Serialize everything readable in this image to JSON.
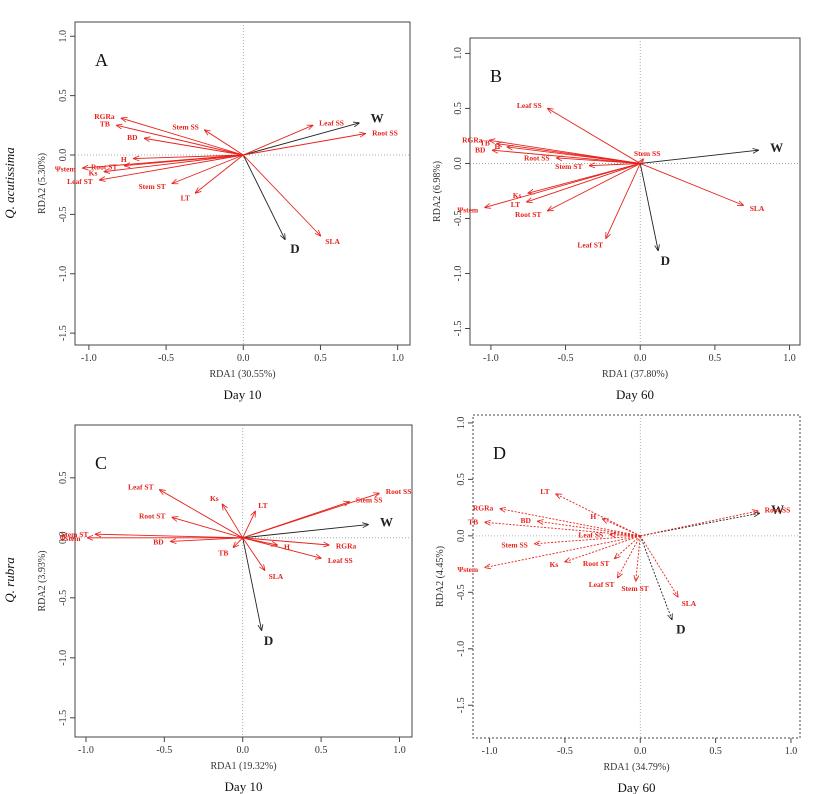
{
  "row_labels": [
    "Q. acutissima",
    "Q. rubra"
  ],
  "chart_data": [
    {
      "type": "biplot",
      "panel": "A",
      "xlabel": "RDA1 (30.55%)",
      "ylabel": "RDA2 (5.30%)",
      "caption": "Day 10",
      "xlim": [
        -1.09,
        1.08
      ],
      "ylim": [
        -1.6,
        1.12
      ],
      "xticks": [
        {
          "value": -1,
          "label": "-1.0"
        },
        -0.5,
        {
          "value": 0,
          "label": "0.0"
        },
        0.5,
        {
          "value": 1,
          "label": "1.0"
        }
      ],
      "yticks": [
        {
          "value": -1.5,
          "label": "-1.5"
        },
        {
          "value": -1,
          "label": "-1.0"
        },
        -0.5,
        {
          "value": 0,
          "label": "0.0"
        },
        0.5,
        {
          "value": 1,
          "label": "1.0"
        }
      ],
      "series": [
        {
          "name": "W",
          "color": "#222222",
          "x": 0.75,
          "y": 0.27
        },
        {
          "name": "D",
          "color": "#222222",
          "x": 0.27,
          "y": -0.71
        },
        {
          "name": "Leaf SS",
          "color": "#e8221b",
          "x": 0.45,
          "y": 0.25
        },
        {
          "name": "Root SS",
          "color": "#e8221b",
          "x": 0.79,
          "y": 0.18
        },
        {
          "name": "SLA",
          "color": "#e8221b",
          "x": 0.5,
          "y": -0.68
        },
        {
          "name": "Stem SS",
          "color": "#e8221b",
          "x": -0.25,
          "y": 0.21
        },
        {
          "name": "RGRa",
          "color": "#e8221b",
          "x": -0.79,
          "y": 0.31
        },
        {
          "name": "TB",
          "color": "#e8221b",
          "x": -0.82,
          "y": 0.25
        },
        {
          "name": "BD",
          "color": "#e8221b",
          "x": -0.64,
          "y": 0.14
        },
        {
          "name": "H",
          "color": "#e8221b",
          "x": -0.71,
          "y": -0.03
        },
        {
          "name": "Ψstem",
          "color": "#e8221b",
          "x": -1.04,
          "y": -0.11
        },
        {
          "name": "Ks",
          "color": "#e8221b",
          "x": -0.9,
          "y": -0.14
        },
        {
          "name": "Root ST",
          "color": "#e8221b",
          "x": -0.77,
          "y": -0.09
        },
        {
          "name": "Leaf ST",
          "color": "#e8221b",
          "x": -0.93,
          "y": -0.21
        },
        {
          "name": "Stem ST",
          "color": "#e8221b",
          "x": -0.46,
          "y": -0.24
        },
        {
          "name": "LT",
          "color": "#e8221b",
          "x": -0.31,
          "y": -0.32
        }
      ]
    },
    {
      "type": "biplot",
      "panel": "B",
      "xlabel": "RDA1 (37.80%)",
      "ylabel": "RDA2 (6.98%)",
      "caption": "Day 60",
      "xlim": [
        -1.14,
        1.07
      ],
      "ylim": [
        -1.65,
        1.14
      ],
      "xticks": [
        {
          "value": -1,
          "label": "-1.0"
        },
        -0.5,
        {
          "value": 0,
          "label": "0.0"
        },
        0.5,
        {
          "value": 1,
          "label": "1.0"
        }
      ],
      "yticks": [
        {
          "value": -1.5,
          "label": "-1.5"
        },
        {
          "value": -1,
          "label": "-1.0"
        },
        -0.5,
        {
          "value": 0,
          "label": "0.0"
        },
        0.5,
        {
          "value": 1,
          "label": "1.0"
        }
      ],
      "series": [
        {
          "name": "W",
          "color": "#222222",
          "x": 0.79,
          "y": 0.12
        },
        {
          "name": "D",
          "color": "#222222",
          "x": 0.12,
          "y": -0.79
        },
        {
          "name": "Leaf SS",
          "color": "#e8221b",
          "x": -0.62,
          "y": 0.5
        },
        {
          "name": "Stem SS",
          "color": "#e8221b",
          "x": 0.02,
          "y": 0.04
        },
        {
          "name": "SLA",
          "color": "#e8221b",
          "x": 0.69,
          "y": -0.38
        },
        {
          "name": "RGRa",
          "color": "#e8221b",
          "x": -1.01,
          "y": 0.21
        },
        {
          "name": "TB",
          "color": "#e8221b",
          "x": -0.96,
          "y": 0.18
        },
        {
          "name": "H",
          "color": "#e8221b",
          "x": -0.89,
          "y": 0.15
        },
        {
          "name": "BD",
          "color": "#e8221b",
          "x": -0.99,
          "y": 0.12
        },
        {
          "name": "Root SS",
          "color": "#e8221b",
          "x": -0.56,
          "y": 0.05
        },
        {
          "name": "Stem ST",
          "color": "#e8221b",
          "x": -0.34,
          "y": -0.02
        },
        {
          "name": "Ks",
          "color": "#e8221b",
          "x": -0.75,
          "y": -0.27
        },
        {
          "name": "Ψstem",
          "color": "#e8221b",
          "x": -1.04,
          "y": -0.4
        },
        {
          "name": "LT",
          "color": "#e8221b",
          "x": -0.76,
          "y": -0.35
        },
        {
          "name": "Root ST",
          "color": "#e8221b",
          "x": -0.62,
          "y": -0.43
        },
        {
          "name": "Leaf ST",
          "color": "#e8221b",
          "x": -0.23,
          "y": -0.68
        }
      ]
    },
    {
      "type": "biplot",
      "panel": "C",
      "xlabel": "RDA1 (19.32%)",
      "ylabel": "RDA2 (3.93%)",
      "caption": "Day 10",
      "xlim": [
        -1.07,
        1.08
      ],
      "ylim": [
        -1.66,
        0.94
      ],
      "xticks": [
        {
          "value": -1,
          "label": "-1.0"
        },
        -0.5,
        {
          "value": 0,
          "label": "0.0"
        },
        0.5,
        {
          "value": 1,
          "label": "1.0"
        }
      ],
      "yticks": [
        {
          "value": -1.5,
          "label": "-1.5"
        },
        {
          "value": -1,
          "label": "-1.0"
        },
        -0.5,
        {
          "value": 0,
          "label": "0.0"
        },
        0.5
      ],
      "series": [
        {
          "name": "W",
          "color": "#222222",
          "x": 0.8,
          "y": 0.11
        },
        {
          "name": "D",
          "color": "#222222",
          "x": 0.12,
          "y": -0.77
        },
        {
          "name": "Stem SS",
          "color": "#e8221b",
          "x": 0.68,
          "y": 0.3
        },
        {
          "name": "Root SS",
          "color": "#e8221b",
          "x": 0.87,
          "y": 0.37
        },
        {
          "name": "RGRa",
          "color": "#e8221b",
          "x": 0.55,
          "y": -0.06
        },
        {
          "name": "Leaf SS",
          "color": "#e8221b",
          "x": 0.5,
          "y": -0.17
        },
        {
          "name": "H",
          "color": "#e8221b",
          "x": 0.22,
          "y": -0.06
        },
        {
          "name": "SLA",
          "color": "#e8221b",
          "x": 0.14,
          "y": -0.27
        },
        {
          "name": "LT",
          "color": "#e8221b",
          "x": 0.08,
          "y": 0.22
        },
        {
          "name": "Ks",
          "color": "#e8221b",
          "x": -0.13,
          "y": 0.28
        },
        {
          "name": "Leaf ST",
          "color": "#e8221b",
          "x": -0.53,
          "y": 0.4
        },
        {
          "name": "Root ST",
          "color": "#e8221b",
          "x": -0.45,
          "y": 0.17
        },
        {
          "name": "Stem ST",
          "color": "#e8221b",
          "x": -0.94,
          "y": 0.03
        },
        {
          "name": "Ψstem",
          "color": "#e8221b",
          "x": -0.99,
          "y": 0.0
        },
        {
          "name": "BD",
          "color": "#e8221b",
          "x": -0.46,
          "y": -0.03
        },
        {
          "name": "TB",
          "color": "#e8221b",
          "x": -0.06,
          "y": -0.08
        }
      ]
    },
    {
      "type": "biplot",
      "panel": "D",
      "xlabel": "RDA1 (34.79%)",
      "ylabel": "RDA2 (4.45%)",
      "caption": "Day 60",
      "xlim": [
        -1.11,
        1.06
      ],
      "ylim": [
        -1.79,
        1.07
      ],
      "xticks": [
        {
          "value": -1,
          "label": "-1.0"
        },
        -0.5,
        {
          "value": 0,
          "label": "0.0"
        },
        0.5,
        {
          "value": 1,
          "label": "1.0"
        }
      ],
      "yticks": [
        {
          "value": -1.5,
          "label": "-1.5"
        },
        {
          "value": -1,
          "label": "-1.0"
        },
        -0.5,
        {
          "value": 0,
          "label": "0.0"
        },
        0.5,
        {
          "value": 1,
          "label": "1.0"
        }
      ],
      "series": [
        {
          "name": "W",
          "color": "#222222",
          "x": 0.79,
          "y": 0.2
        },
        {
          "name": "D",
          "color": "#222222",
          "x": 0.21,
          "y": -0.74
        },
        {
          "name": "Root SS",
          "color": "#e8221b",
          "x": 0.78,
          "y": 0.22
        },
        {
          "name": "SLA",
          "color": "#e8221b",
          "x": 0.25,
          "y": -0.54
        },
        {
          "name": "RGRa",
          "color": "#e8221b",
          "x": -0.93,
          "y": 0.24
        },
        {
          "name": "LT",
          "color": "#e8221b",
          "x": -0.56,
          "y": 0.37
        },
        {
          "name": "TB",
          "color": "#e8221b",
          "x": -1.03,
          "y": 0.12
        },
        {
          "name": "BD",
          "color": "#e8221b",
          "x": -0.68,
          "y": 0.13
        },
        {
          "name": "H",
          "color": "#e8221b",
          "x": -0.25,
          "y": 0.15
        },
        {
          "name": "Stem SS",
          "color": "#e8221b",
          "x": -0.7,
          "y": -0.07
        },
        {
          "name": "Leaf SS",
          "color": "#e8221b",
          "x": -0.2,
          "y": 0.01
        },
        {
          "name": "Ψstem",
          "color": "#e8221b",
          "x": -1.03,
          "y": -0.28
        },
        {
          "name": "Ks",
          "color": "#e8221b",
          "x": -0.5,
          "y": -0.23
        },
        {
          "name": "Root ST",
          "color": "#e8221b",
          "x": -0.17,
          "y": -0.2
        },
        {
          "name": "Leaf ST",
          "color": "#e8221b",
          "x": -0.15,
          "y": -0.37
        },
        {
          "name": "Stem ST",
          "color": "#e8221b",
          "x": -0.03,
          "y": -0.4
        }
      ]
    }
  ]
}
